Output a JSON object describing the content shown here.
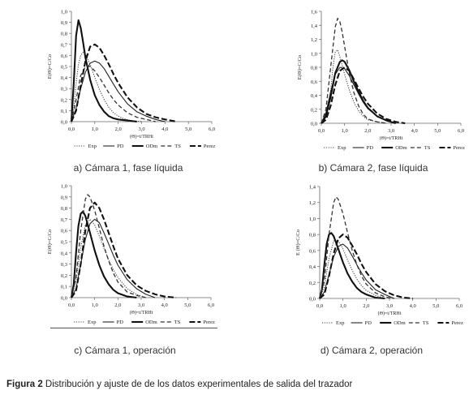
{
  "figure": {
    "caption_label": "Figura 2",
    "caption_text": " Distribución y ajuste de de los datos experimentales de salida del trazador"
  },
  "chart_data": [
    {
      "type": "line",
      "caption": "a) Cámara 1, fase líquida",
      "ylabel": "E(Θ)=C/Co",
      "xlabel": "(Θ)=t/TRHt",
      "xlim": [
        0,
        6.0
      ],
      "ylim": [
        0,
        1.0
      ],
      "x_ticks": [
        "0,0",
        "1,0",
        "2,0",
        "3,0",
        "4,0",
        "5,0",
        "6,0"
      ],
      "y_ticks": [
        "0,0",
        "0,1",
        "0,2",
        "0,3",
        "0,4",
        "0,5",
        "0,6",
        "0,7",
        "0,8",
        "0,9",
        "1,0"
      ],
      "legend": [
        "Exp",
        "PD",
        "ODm",
        "TS",
        "Perez"
      ],
      "series": [
        {
          "name": "Exp",
          "style": "dotted",
          "x": [
            0.0,
            0.1,
            0.2,
            0.3,
            0.4,
            0.5,
            0.6,
            0.8,
            1.0,
            1.2,
            1.4,
            1.6,
            1.8,
            2.0,
            2.2,
            2.5,
            3.0
          ],
          "y": [
            0.0,
            0.12,
            0.35,
            0.52,
            0.6,
            0.63,
            0.61,
            0.52,
            0.4,
            0.29,
            0.2,
            0.13,
            0.08,
            0.05,
            0.03,
            0.01,
            0.0
          ]
        },
        {
          "name": "PD",
          "style": "solid",
          "x": [
            0.0,
            0.2,
            0.4,
            0.6,
            0.8,
            1.0,
            1.2,
            1.4,
            1.6,
            1.8,
            2.0,
            2.4,
            2.8,
            3.2,
            3.6,
            4.0
          ],
          "y": [
            0.0,
            0.12,
            0.3,
            0.45,
            0.53,
            0.55,
            0.53,
            0.48,
            0.41,
            0.34,
            0.27,
            0.16,
            0.09,
            0.05,
            0.02,
            0.0
          ]
        },
        {
          "name": "ODm",
          "style": "solid-bold",
          "x": [
            0.0,
            0.1,
            0.2,
            0.3,
            0.4,
            0.5,
            0.6,
            0.8,
            1.0,
            1.2,
            1.4,
            1.6,
            1.8,
            2.0,
            2.4,
            2.8
          ],
          "y": [
            0.0,
            0.35,
            0.78,
            0.92,
            0.85,
            0.72,
            0.58,
            0.38,
            0.24,
            0.15,
            0.09,
            0.05,
            0.03,
            0.02,
            0.01,
            0.0
          ]
        },
        {
          "name": "TS",
          "style": "dashed",
          "x": [
            0.0,
            0.2,
            0.4,
            0.6,
            0.8,
            1.0,
            1.2,
            1.4,
            1.6,
            1.8,
            2.0,
            2.4,
            2.8,
            3.2,
            3.6
          ],
          "y": [
            0.0,
            0.2,
            0.42,
            0.5,
            0.5,
            0.46,
            0.4,
            0.33,
            0.26,
            0.2,
            0.15,
            0.08,
            0.04,
            0.02,
            0.0
          ]
        },
        {
          "name": "Perez",
          "style": "bold-dashed",
          "x": [
            0.0,
            0.2,
            0.4,
            0.6,
            0.8,
            1.0,
            1.2,
            1.4,
            1.6,
            1.8,
            2.0,
            2.4,
            2.8,
            3.2,
            3.6,
            4.0,
            4.5
          ],
          "y": [
            0.0,
            0.1,
            0.33,
            0.55,
            0.68,
            0.7,
            0.67,
            0.6,
            0.52,
            0.43,
            0.35,
            0.22,
            0.13,
            0.07,
            0.04,
            0.02,
            0.0
          ]
        }
      ]
    },
    {
      "type": "line",
      "caption": "b) Cámara 2, fase líquida",
      "ylabel": "E(Θ)=C/Co",
      "xlabel": "(Θ)=t/TRHt",
      "xlim": [
        0,
        6.0
      ],
      "ylim": [
        0,
        1.6
      ],
      "x_ticks": [
        "0,0",
        "1,0",
        "2,0",
        "3,0",
        "4,0",
        "5,0",
        "6,0"
      ],
      "y_ticks": [
        "0,0",
        "0,2",
        "0,4",
        "0,6",
        "0,8",
        "1,0",
        "1,2",
        "1,4",
        "1,6"
      ],
      "legend": [
        "Exp",
        "PD",
        "ODm",
        "TS",
        "Perez"
      ],
      "series": [
        {
          "name": "Exp",
          "style": "dotted",
          "x": [
            0.0,
            0.2,
            0.4,
            0.5,
            0.6,
            0.7,
            0.8,
            0.9,
            1.0,
            1.2,
            1.4,
            1.6,
            1.8,
            2.0,
            2.4,
            2.8
          ],
          "y": [
            0.0,
            0.1,
            0.45,
            0.8,
            1.02,
            1.05,
            0.95,
            0.82,
            0.7,
            0.48,
            0.3,
            0.18,
            0.1,
            0.05,
            0.02,
            0.0
          ]
        },
        {
          "name": "PD",
          "style": "solid",
          "x": [
            0.0,
            0.2,
            0.4,
            0.6,
            0.8,
            1.0,
            1.2,
            1.4,
            1.6,
            1.8,
            2.0,
            2.4,
            2.8,
            3.2
          ],
          "y": [
            0.0,
            0.15,
            0.45,
            0.7,
            0.8,
            0.78,
            0.68,
            0.55,
            0.42,
            0.3,
            0.21,
            0.1,
            0.04,
            0.0
          ]
        },
        {
          "name": "ODm",
          "style": "solid-bold",
          "x": [
            0.0,
            0.2,
            0.4,
            0.6,
            0.8,
            0.9,
            1.0,
            1.2,
            1.4,
            1.6,
            1.8,
            2.0,
            2.4,
            2.8,
            3.2
          ],
          "y": [
            0.0,
            0.1,
            0.38,
            0.72,
            0.88,
            0.9,
            0.88,
            0.76,
            0.6,
            0.45,
            0.32,
            0.22,
            0.1,
            0.04,
            0.0
          ]
        },
        {
          "name": "TS",
          "style": "dashed",
          "x": [
            0.0,
            0.2,
            0.4,
            0.6,
            0.7,
            0.8,
            0.9,
            1.0,
            1.2,
            1.4,
            1.6,
            1.8,
            2.0,
            2.4,
            2.8
          ],
          "y": [
            0.0,
            0.2,
            0.8,
            1.38,
            1.5,
            1.45,
            1.3,
            1.1,
            0.72,
            0.44,
            0.25,
            0.13,
            0.06,
            0.02,
            0.0
          ]
        },
        {
          "name": "Perez",
          "style": "bold-dashed",
          "x": [
            0.0,
            0.2,
            0.4,
            0.6,
            0.8,
            1.0,
            1.2,
            1.4,
            1.6,
            1.8,
            2.0,
            2.4,
            2.8,
            3.2,
            3.6
          ],
          "y": [
            0.0,
            0.05,
            0.25,
            0.55,
            0.75,
            0.8,
            0.75,
            0.63,
            0.5,
            0.38,
            0.28,
            0.14,
            0.06,
            0.02,
            0.0
          ]
        }
      ]
    },
    {
      "type": "line",
      "caption": "c) Cámara 1, operación",
      "ylabel": "E(Θ)=C/Co",
      "xlabel": "(Θ)=t/TRHt",
      "xlim": [
        0,
        6.0
      ],
      "ylim": [
        0,
        1.0
      ],
      "x_ticks": [
        "0,0",
        "1,0",
        "2,0",
        "3,0",
        "4,0",
        "5,0",
        "6,0"
      ],
      "y_ticks": [
        "0,0",
        "0,1",
        "0,2",
        "0,3",
        "0,4",
        "0,5",
        "0,6",
        "0,7",
        "0,8",
        "0,9",
        "1,0"
      ],
      "legend": [
        "Exp",
        "PD",
        "ODm",
        "TS",
        "Perez"
      ],
      "series": [
        {
          "name": "Exp",
          "style": "dotted",
          "x": [
            0.0,
            0.2,
            0.4,
            0.6,
            0.8,
            1.0,
            1.2,
            1.4,
            1.6,
            1.8,
            2.0,
            2.4,
            2.8,
            3.2
          ],
          "y": [
            0.0,
            0.15,
            0.45,
            0.65,
            0.7,
            0.65,
            0.55,
            0.44,
            0.34,
            0.25,
            0.18,
            0.08,
            0.03,
            0.0
          ]
        },
        {
          "name": "PD",
          "style": "solid",
          "x": [
            0.0,
            0.2,
            0.4,
            0.6,
            0.8,
            1.0,
            1.2,
            1.4,
            1.6,
            1.8,
            2.0,
            2.4,
            2.8,
            3.2,
            3.6
          ],
          "y": [
            0.0,
            0.08,
            0.3,
            0.52,
            0.66,
            0.7,
            0.67,
            0.58,
            0.48,
            0.38,
            0.29,
            0.16,
            0.08,
            0.03,
            0.0
          ]
        },
        {
          "name": "ODm",
          "style": "solid-bold",
          "x": [
            0.0,
            0.1,
            0.2,
            0.3,
            0.4,
            0.5,
            0.6,
            0.8,
            1.0,
            1.2,
            1.4,
            1.6,
            1.8,
            2.0,
            2.4,
            2.8
          ],
          "y": [
            0.0,
            0.12,
            0.4,
            0.64,
            0.75,
            0.77,
            0.73,
            0.58,
            0.42,
            0.29,
            0.19,
            0.12,
            0.07,
            0.04,
            0.01,
            0.0
          ]
        },
        {
          "name": "TS",
          "style": "dashed",
          "x": [
            0.0,
            0.2,
            0.4,
            0.6,
            0.7,
            0.8,
            1.0,
            1.2,
            1.4,
            1.6,
            1.8,
            2.0,
            2.4,
            2.8,
            3.2
          ],
          "y": [
            0.0,
            0.18,
            0.6,
            0.88,
            0.92,
            0.9,
            0.78,
            0.62,
            0.46,
            0.33,
            0.22,
            0.14,
            0.05,
            0.02,
            0.0
          ]
        },
        {
          "name": "Perez",
          "style": "bold-dashed",
          "x": [
            0.0,
            0.2,
            0.4,
            0.6,
            0.8,
            1.0,
            1.2,
            1.4,
            1.6,
            1.8,
            2.0,
            2.4,
            2.8,
            3.2,
            3.6,
            4.0,
            4.5
          ],
          "y": [
            0.0,
            0.06,
            0.3,
            0.6,
            0.8,
            0.85,
            0.8,
            0.7,
            0.58,
            0.46,
            0.35,
            0.2,
            0.11,
            0.06,
            0.03,
            0.01,
            0.0
          ]
        }
      ]
    },
    {
      "type": "line",
      "caption": "d) Cámara 2, operación",
      "ylabel": "E (Θ)=C/Co",
      "xlabel": "(Θ)=t/TRHt",
      "xlim": [
        0,
        6.0
      ],
      "ylim": [
        0,
        1.4
      ],
      "x_ticks": [
        "0,0",
        "1,0",
        "2,0",
        "3,0",
        "4,0",
        "5,0",
        "6,0"
      ],
      "y_ticks": [
        "0,0",
        "0,2",
        "0,4",
        "0,6",
        "0,8",
        "1,0",
        "1,2",
        "1,4"
      ],
      "legend": [
        "Exp",
        "PD",
        "ODm",
        "TS",
        "Perez"
      ],
      "series": [
        {
          "name": "Exp",
          "style": "dotted",
          "x": [
            0.0,
            0.2,
            0.4,
            0.6,
            0.8,
            1.0,
            1.2,
            1.4,
            1.6,
            1.8,
            2.0,
            2.4,
            2.8
          ],
          "y": [
            0.0,
            0.15,
            0.5,
            0.72,
            0.72,
            0.62,
            0.48,
            0.35,
            0.24,
            0.16,
            0.1,
            0.04,
            0.0
          ]
        },
        {
          "name": "PD",
          "style": "solid",
          "x": [
            0.0,
            0.2,
            0.4,
            0.6,
            0.8,
            1.0,
            1.2,
            1.4,
            1.6,
            1.8,
            2.0,
            2.4,
            2.8,
            3.2
          ],
          "y": [
            0.0,
            0.08,
            0.3,
            0.52,
            0.65,
            0.68,
            0.63,
            0.53,
            0.42,
            0.32,
            0.23,
            0.11,
            0.05,
            0.0
          ]
        },
        {
          "name": "ODm",
          "style": "solid-bold",
          "x": [
            0.0,
            0.1,
            0.2,
            0.3,
            0.4,
            0.5,
            0.6,
            0.8,
            1.0,
            1.2,
            1.4,
            1.6,
            1.8,
            2.0,
            2.4,
            2.8
          ],
          "y": [
            0.0,
            0.12,
            0.42,
            0.68,
            0.8,
            0.82,
            0.78,
            0.62,
            0.45,
            0.31,
            0.21,
            0.13,
            0.08,
            0.05,
            0.01,
            0.0
          ]
        },
        {
          "name": "TS",
          "style": "dashed",
          "x": [
            0.0,
            0.2,
            0.4,
            0.6,
            0.7,
            0.8,
            1.0,
            1.2,
            1.4,
            1.6,
            1.8,
            2.0,
            2.4,
            2.8,
            3.2
          ],
          "y": [
            0.0,
            0.22,
            0.8,
            1.2,
            1.27,
            1.24,
            1.06,
            0.82,
            0.6,
            0.42,
            0.28,
            0.18,
            0.07,
            0.02,
            0.0
          ]
        },
        {
          "name": "Perez",
          "style": "bold-dashed",
          "x": [
            0.0,
            0.2,
            0.4,
            0.6,
            0.8,
            1.0,
            1.2,
            1.4,
            1.6,
            1.8,
            2.0,
            2.4,
            2.8,
            3.2,
            3.6,
            4.0
          ],
          "y": [
            0.0,
            0.05,
            0.28,
            0.56,
            0.75,
            0.8,
            0.76,
            0.66,
            0.55,
            0.43,
            0.33,
            0.18,
            0.09,
            0.04,
            0.01,
            0.0
          ]
        }
      ]
    }
  ]
}
